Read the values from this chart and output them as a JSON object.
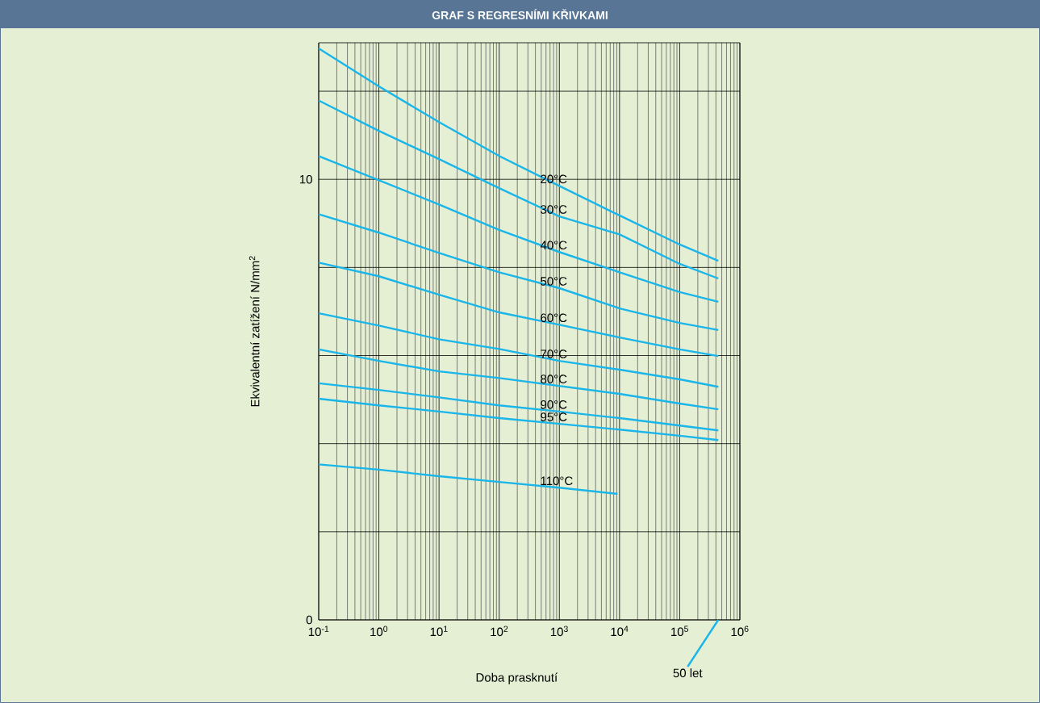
{
  "chart_data": {
    "type": "line",
    "title": "GRAF S REGRESNÍMI KŘIVKAMI",
    "xlabel": "Doba prasknutí",
    "ylabel": "Ekvivalentní zatížení N/mm$^{2}$",
    "log": "x",
    "grid": true,
    "xlim": [
      0.1,
      1000000
    ],
    "ylim": [
      0,
      13.1
    ],
    "xticks": [
      {
        "value": 0.1,
        "label": "10$^{-1}$"
      },
      {
        "value": 1,
        "label": "10$^{0}$"
      },
      {
        "value": 10,
        "label": "10$^{1}$"
      },
      {
        "value": 100,
        "label": "10$^{2}$"
      },
      {
        "value": 1000,
        "label": "10$^{3}$"
      },
      {
        "value": 10000,
        "label": "10$^{4}$"
      },
      {
        "value": 100000,
        "label": "10$^{5}$"
      },
      {
        "value": 1000000,
        "label": "10$^{6}$"
      }
    ],
    "yticks": [
      0,
      {
        "value": 2,
        "label": null
      },
      {
        "value": 4,
        "label": null
      },
      {
        "value": 6,
        "label": null
      },
      {
        "value": 8,
        "label": null
      },
      10,
      {
        "value": 12,
        "label": null
      }
    ],
    "series": [
      {
        "name": "20°C",
        "color": "#1ab6ea",
        "x": [
          0.1,
          1,
          10,
          100,
          1000,
          10000,
          100000,
          438000
        ],
        "values": [
          12.97,
          12.11,
          11.3,
          10.53,
          9.85,
          9.18,
          8.52,
          8.15
        ]
      },
      {
        "name": "30°C",
        "color": "#1ab6ea",
        "x": [
          0.1,
          1,
          10,
          100,
          1000,
          10000,
          100000,
          438000
        ],
        "values": [
          11.79,
          11.1,
          10.46,
          9.8,
          9.16,
          8.75,
          8.08,
          7.75
        ]
      },
      {
        "name": "40°C",
        "color": "#1ab6ea",
        "x": [
          0.1,
          1,
          10,
          100,
          1000,
          10000,
          100000,
          438000
        ],
        "values": [
          10.53,
          9.98,
          9.43,
          8.85,
          8.35,
          7.89,
          7.44,
          7.22
        ]
      },
      {
        "name": "50°C",
        "color": "#1ab6ea",
        "x": [
          0.1,
          1,
          10,
          100,
          1000,
          10000,
          100000,
          438000
        ],
        "values": [
          9.21,
          8.79,
          8.33,
          7.89,
          7.53,
          7.07,
          6.74,
          6.58
        ]
      },
      {
        "name": "60°C",
        "color": "#1ab6ea",
        "x": [
          0.1,
          1,
          10,
          100,
          1000,
          10000,
          100000,
          438000
        ],
        "values": [
          8.11,
          7.8,
          7.38,
          6.98,
          6.7,
          6.41,
          6.14,
          5.99
        ]
      },
      {
        "name": "70°C",
        "color": "#1ab6ea",
        "x": [
          0.1,
          1,
          10,
          100,
          1000,
          10000,
          100000,
          438000
        ],
        "values": [
          6.96,
          6.68,
          6.37,
          6.15,
          5.88,
          5.68,
          5.46,
          5.29
        ]
      },
      {
        "name": "80°C",
        "color": "#1ab6ea",
        "x": [
          0.1,
          1,
          10,
          100,
          1000,
          10000,
          100000,
          438000
        ],
        "values": [
          6.14,
          5.88,
          5.64,
          5.49,
          5.31,
          5.13,
          4.91,
          4.78
        ]
      },
      {
        "name": "90°C",
        "color": "#1ab6ea",
        "x": [
          0.1,
          1,
          10,
          100,
          1000,
          10000,
          100000,
          438000
        ],
        "values": [
          5.37,
          5.22,
          5.05,
          4.87,
          4.73,
          4.58,
          4.41,
          4.3
        ]
      },
      {
        "name": "95°C",
        "color": "#1ab6ea",
        "x": [
          0.1,
          1,
          10,
          100,
          1000,
          10000,
          100000,
          438000
        ],
        "values": [
          5.02,
          4.87,
          4.73,
          4.58,
          4.45,
          4.32,
          4.18,
          4.08
        ]
      },
      {
        "name": "110°C",
        "color": "#1ab6ea",
        "x": [
          0.1,
          1,
          10,
          100,
          1000,
          9300
        ],
        "values": [
          3.53,
          3.41,
          3.26,
          3.13,
          3.0,
          2.86
        ]
      }
    ],
    "annotations": [
      "50 let"
    ]
  }
}
